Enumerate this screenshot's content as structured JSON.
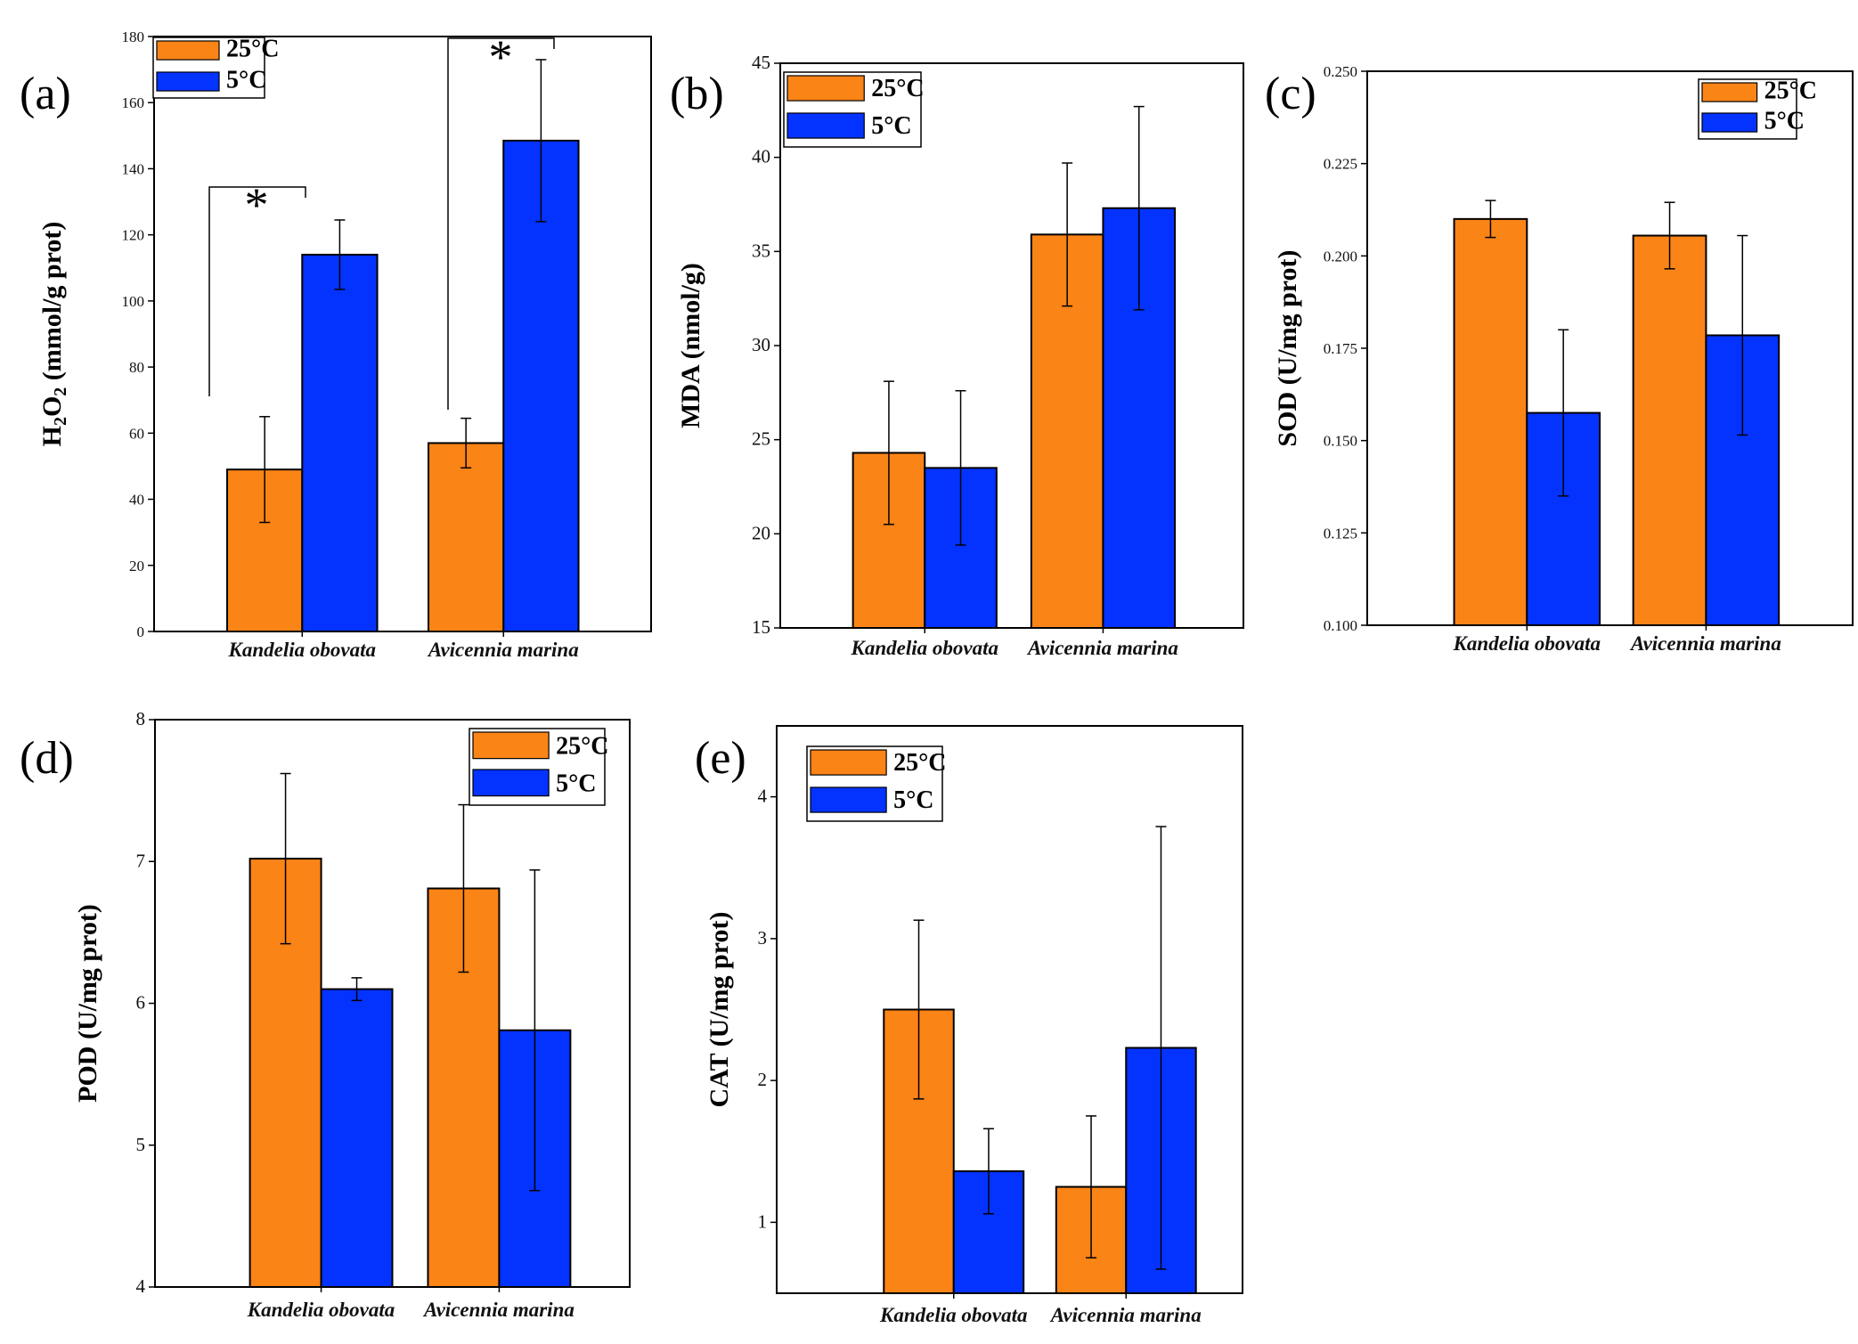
{
  "figure": {
    "colors": {
      "warm": "#fb8417",
      "cold": "#0433ff",
      "axis": "#000000"
    },
    "series_names": [
      "25°C",
      "5°C"
    ],
    "categories": [
      "Kandelia obovata",
      "Avicennia marina"
    ]
  },
  "chart_data": [
    {
      "type": "bar",
      "panel_label": "(a)",
      "ylabel": "H2O2 (mmol/g prot)",
      "categories": [
        "Kandelia obovata",
        "Avicennia marina"
      ],
      "series": [
        {
          "name": "25°C",
          "values": [
            49,
            57
          ],
          "errors": [
            16,
            7.5
          ]
        },
        {
          "name": "5°C",
          "values": [
            114,
            148.5
          ],
          "errors": [
            10.5,
            24.5
          ]
        }
      ],
      "ylim": [
        0,
        180
      ],
      "yticks": [
        "0",
        "20",
        "40",
        "60",
        "80",
        "100",
        "120",
        "140",
        "160",
        "180"
      ],
      "significance": [
        "*",
        "*"
      ]
    },
    {
      "type": "bar",
      "panel_label": "(b)",
      "ylabel": "MDA  (nmol/g)",
      "categories": [
        "Kandelia obovata",
        "Avicennia marina"
      ],
      "series": [
        {
          "name": "25°C",
          "values": [
            24.3,
            35.9
          ],
          "errors": [
            3.8,
            3.8
          ]
        },
        {
          "name": "5°C",
          "values": [
            23.5,
            37.3
          ],
          "errors": [
            4.1,
            5.4
          ]
        }
      ],
      "ylim": [
        15,
        45
      ],
      "yticks": [
        "15",
        "20",
        "25",
        "30",
        "35",
        "40",
        "45"
      ]
    },
    {
      "type": "bar",
      "panel_label": "(c)",
      "ylabel": "SOD (U/mg prot)",
      "categories": [
        "Kandelia obovata",
        "Avicennia marina"
      ],
      "series": [
        {
          "name": "25°C",
          "values": [
            0.21,
            0.2055
          ],
          "errors": [
            0.005,
            0.009
          ]
        },
        {
          "name": "5°C",
          "values": [
            0.1575,
            0.1785
          ],
          "errors": [
            0.0225,
            0.027
          ]
        }
      ],
      "ylim": [
        0.1,
        0.25
      ],
      "yticks": [
        "0.100",
        "0.125",
        "0.150",
        "0.175",
        "0.200",
        "0.225",
        "0.250"
      ]
    },
    {
      "type": "bar",
      "panel_label": "(d)",
      "ylabel": "POD (U/mg prot)",
      "categories": [
        "Kandelia obovata",
        "Avicennia marina"
      ],
      "series": [
        {
          "name": "25°C",
          "values": [
            7.02,
            6.81
          ],
          "errors": [
            0.6,
            0.59
          ]
        },
        {
          "name": "5°C",
          "values": [
            6.1,
            5.81
          ],
          "errors": [
            0.08,
            1.13
          ]
        }
      ],
      "ylim": [
        4,
        8
      ],
      "yticks": [
        "4",
        "5",
        "6",
        "7",
        "8"
      ]
    },
    {
      "type": "bar",
      "panel_label": "(e)",
      "ylabel": "CAT (U/mg prot)",
      "categories": [
        "Kandelia obovata",
        "Avicennia marina"
      ],
      "series": [
        {
          "name": "25°C",
          "values": [
            2.5,
            1.25
          ],
          "errors": [
            0.63,
            0.5
          ]
        },
        {
          "name": "5°C",
          "values": [
            1.36,
            2.23
          ],
          "errors": [
            0.3,
            1.56
          ]
        }
      ],
      "ylim": [
        0.5,
        4.5
      ],
      "yticks": [
        "1",
        "2",
        "3",
        "4"
      ]
    }
  ]
}
